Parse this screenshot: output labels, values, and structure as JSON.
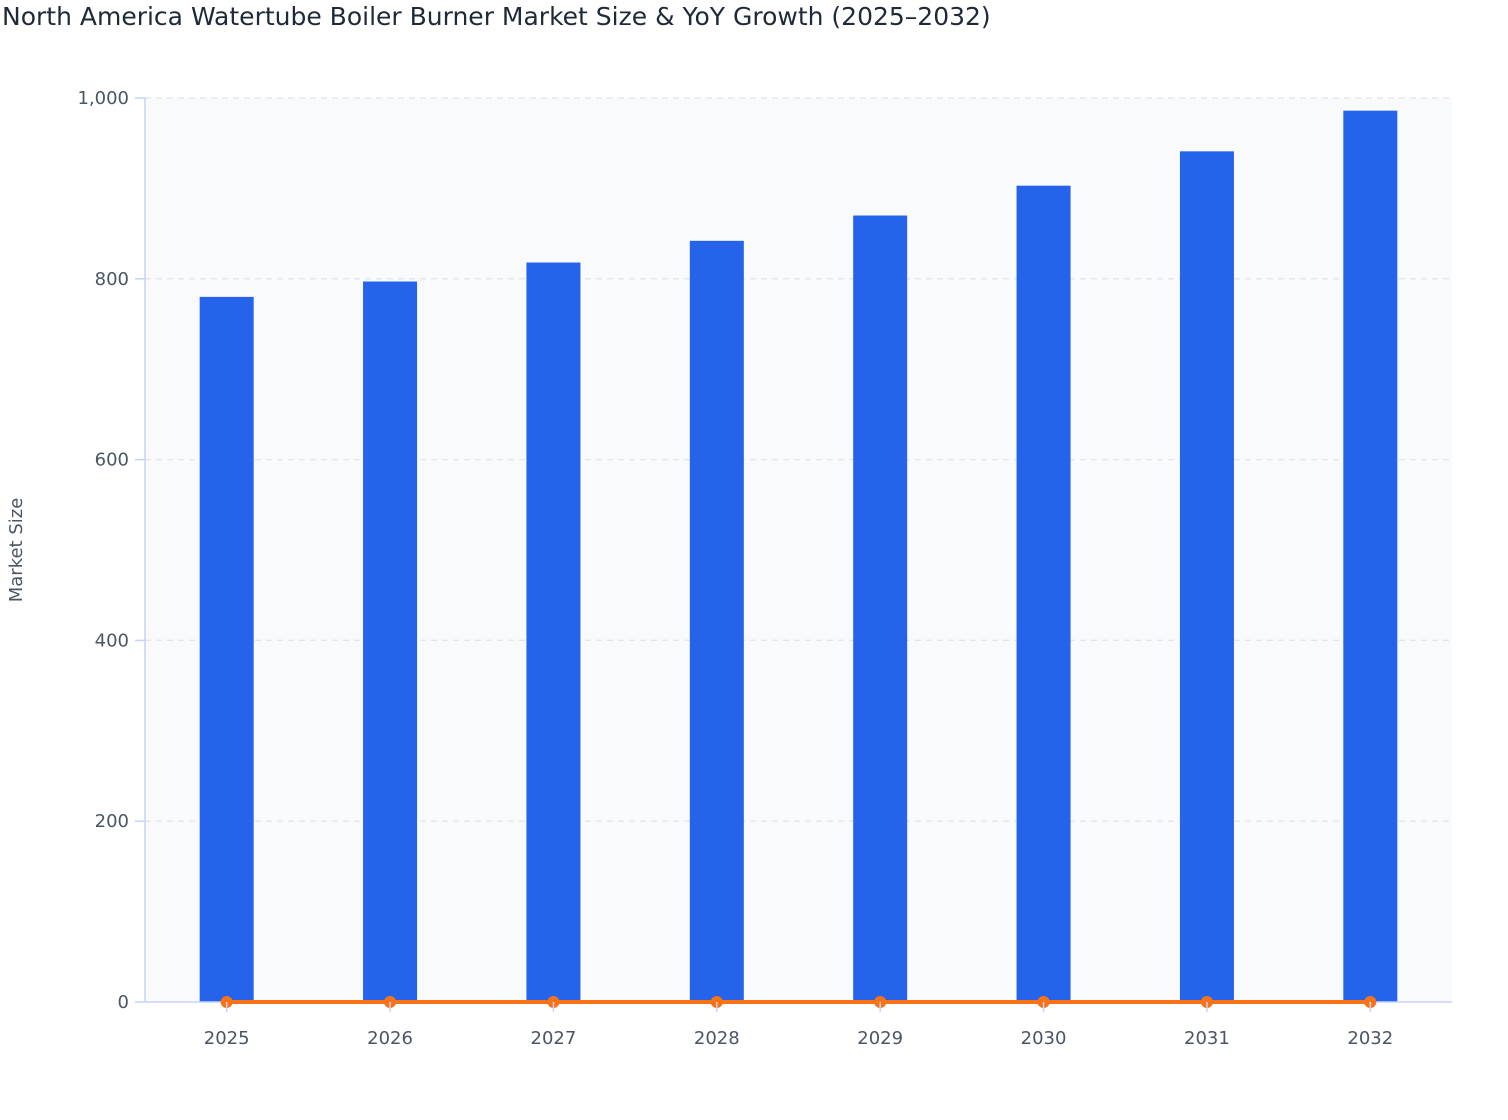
{
  "chart_data": {
    "type": "bar",
    "title": "North America Watertube Boiler Burner Market Size & YoY Growth (2025–2032)",
    "ylabel": "Market Size",
    "xlabel": "",
    "categories": [
      "2025",
      "2026",
      "2027",
      "2028",
      "2029",
      "2030",
      "2031",
      "2032"
    ],
    "series": [
      {
        "kind": "bar",
        "values": [
          780,
          797,
          818,
          842,
          870,
          903,
          941,
          986
        ],
        "color": "#2563eb"
      },
      {
        "kind": "line",
        "values": [
          0,
          0,
          0,
          0,
          0,
          0,
          0,
          0
        ],
        "color": "#f97316"
      }
    ],
    "ylim": [
      0,
      1000
    ],
    "yticks": [
      0,
      200,
      400,
      600,
      800,
      1000
    ],
    "ytick_labels": [
      "0",
      "200",
      "400",
      "600",
      "800",
      "1,000"
    ],
    "grid": true,
    "legend": "none",
    "plot_background": "#f8fafc",
    "grid_color": "#e5e7eb",
    "axis_color": "#c7d2fe"
  }
}
